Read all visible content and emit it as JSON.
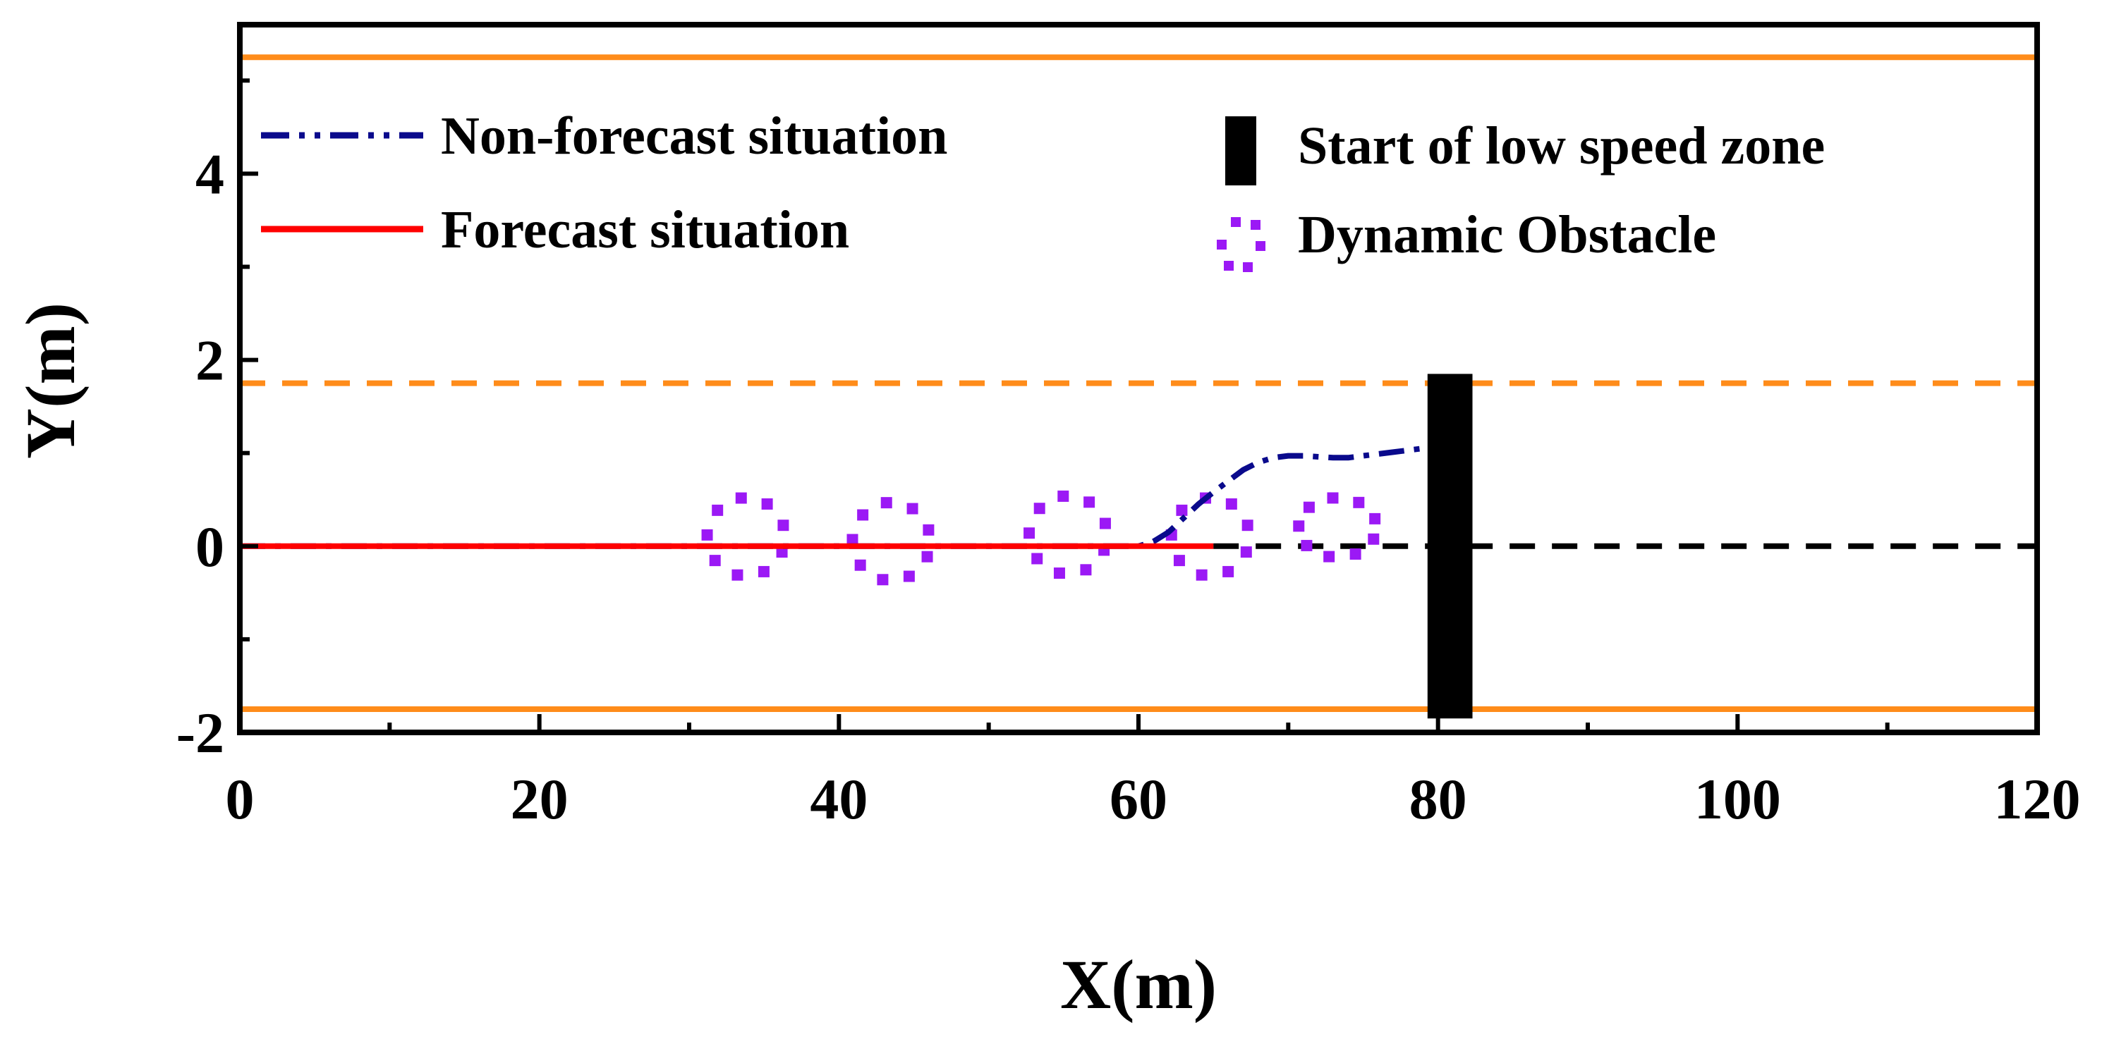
{
  "chart_data": {
    "type": "line",
    "xlabel": "X(m)",
    "ylabel": "Y(m)",
    "xlim": [
      0,
      120
    ],
    "ylim": [
      -2,
      5.6
    ],
    "x_ticks": [
      0,
      20,
      40,
      60,
      80,
      100,
      120
    ],
    "y_ticks": [
      -2,
      0,
      2,
      4
    ],
    "grid": false,
    "lane_lines": [
      {
        "name": "upper-road-boundary",
        "y": 5.25,
        "style": "solid",
        "color": "#ff8c1a"
      },
      {
        "name": "lane-divider",
        "y": 1.75,
        "style": "dashed",
        "color": "#ff8c1a"
      },
      {
        "name": "lower-road-boundary",
        "y": -1.75,
        "style": "solid",
        "color": "#ff8c1a"
      },
      {
        "name": "centerline-reference",
        "y": 0,
        "x_from": 65,
        "x_to": 120,
        "style": "dashed",
        "color": "#000000"
      }
    ],
    "series": [
      {
        "name": "Non-forecast situation",
        "style": "dash-dot",
        "color": "#0a0a8c",
        "x": [
          0,
          10,
          20,
          30,
          40,
          50,
          60,
          61,
          62,
          63,
          64,
          65,
          66,
          67,
          68,
          69,
          70,
          71,
          72,
          73,
          74,
          75,
          76,
          77,
          78,
          79,
          80
        ],
        "y": [
          0,
          0,
          0,
          0,
          0,
          0,
          0,
          0.05,
          0.15,
          0.3,
          0.45,
          0.58,
          0.7,
          0.82,
          0.9,
          0.95,
          0.97,
          0.97,
          0.96,
          0.95,
          0.95,
          0.97,
          0.99,
          1.01,
          1.03,
          1.05,
          1.06
        ]
      },
      {
        "name": "Forecast situation",
        "style": "solid",
        "color": "#ff0000",
        "x": [
          0,
          65
        ],
        "y": [
          0,
          0
        ]
      }
    ],
    "obstacles": [
      {
        "name": "obstacle-1",
        "cx": 33.8,
        "cy": 0.1,
        "rx": 2.6,
        "ry": 0.42
      },
      {
        "name": "obstacle-2",
        "cx": 43.5,
        "cy": 0.05,
        "rx": 2.6,
        "ry": 0.42
      },
      {
        "name": "obstacle-3",
        "cx": 55.3,
        "cy": 0.12,
        "rx": 2.6,
        "ry": 0.42
      },
      {
        "name": "obstacle-4",
        "cx": 64.8,
        "cy": 0.1,
        "rx": 2.6,
        "ry": 0.42
      },
      {
        "name": "obstacle-5",
        "cx": 73.3,
        "cy": 0.2,
        "rx": 2.6,
        "ry": 0.32
      }
    ],
    "obstacle_color": "#9b19f5",
    "low_speed_zone": {
      "x_from": 79.3,
      "x_to": 82.3,
      "y_from": -1.85,
      "y_to": 1.85,
      "color": "#000000"
    },
    "legend": {
      "items": [
        {
          "label": "Non-forecast situation",
          "marker": "dash-dot-line",
          "color": "#0a0a8c"
        },
        {
          "label": "Forecast situation",
          "marker": "solid-line",
          "color": "#ff0000"
        },
        {
          "label": "Start of low speed zone",
          "marker": "filled-rect",
          "color": "#000000"
        },
        {
          "label": "Dynamic Obstacle",
          "marker": "dotted-circle",
          "color": "#9b19f5"
        }
      ]
    }
  }
}
